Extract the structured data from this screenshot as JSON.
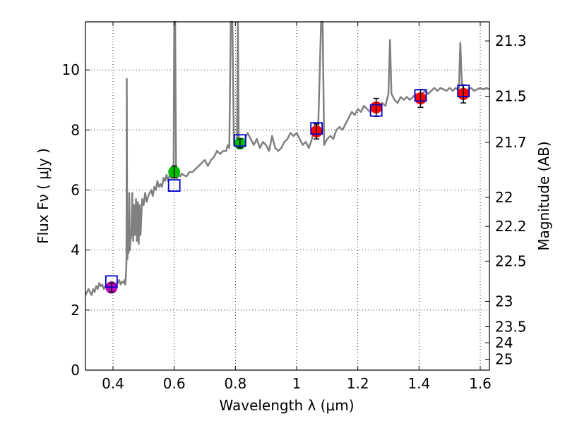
{
  "chart_data": {
    "type": "scatter",
    "xlabel": "Wavelength  λ (μm)",
    "ylabel": "Flux  Fν  ( μJy )",
    "ylabel_right": "Magnitude (AB)",
    "xlim": [
      0.31,
      1.63
    ],
    "ylim": [
      0,
      11.6
    ],
    "x_ticks": [
      0.4,
      0.6,
      0.8,
      1.0,
      1.2,
      1.4,
      1.6
    ],
    "x_tick_labels": [
      "0.4",
      "0.6",
      "0.8",
      "1",
      "1.2",
      "1.4",
      "1.6"
    ],
    "y_ticks": [
      0,
      2,
      4,
      6,
      8,
      10
    ],
    "y_tick_labels": [
      "0",
      "2",
      "4",
      "6",
      "8",
      "10"
    ],
    "right_ticks": [
      21.3,
      21.5,
      21.7,
      22,
      22.2,
      22.5,
      23,
      23.5,
      24,
      25
    ],
    "right_tick_labels": [
      "21.3",
      "21.5",
      "21.7",
      "22",
      "22.2",
      "22.5",
      "23",
      "23.5",
      "24",
      "25"
    ],
    "grid": "dotted",
    "colors": {
      "spectrum": "#808080",
      "model": "#0000cc",
      "magenta": "#bf00bf",
      "green": "#00bf00",
      "red": "#ff0000",
      "errorbar": "#000000"
    },
    "spectrum": [
      [
        0.31,
        2.5
      ],
      [
        0.315,
        2.6
      ],
      [
        0.32,
        2.7
      ],
      [
        0.325,
        2.6
      ],
      [
        0.33,
        2.5
      ],
      [
        0.335,
        2.7
      ],
      [
        0.34,
        2.6
      ],
      [
        0.345,
        2.8
      ],
      [
        0.35,
        2.7
      ],
      [
        0.355,
        2.9
      ],
      [
        0.36,
        2.8
      ],
      [
        0.365,
        2.85
      ],
      [
        0.37,
        2.7
      ],
      [
        0.375,
        2.8
      ],
      [
        0.38,
        2.75
      ],
      [
        0.385,
        2.9
      ],
      [
        0.39,
        2.8
      ],
      [
        0.395,
        2.95
      ],
      [
        0.4,
        2.8
      ],
      [
        0.405,
        2.9
      ],
      [
        0.41,
        2.85
      ],
      [
        0.415,
        2.9
      ],
      [
        0.42,
        3.0
      ],
      [
        0.425,
        2.85
      ],
      [
        0.43,
        2.95
      ],
      [
        0.435,
        2.9
      ],
      [
        0.438,
        3.0
      ],
      [
        0.44,
        2.85
      ],
      [
        0.442,
        3.1
      ],
      [
        0.444,
        3.6
      ],
      [
        0.445,
        9.7
      ],
      [
        0.446,
        6.0
      ],
      [
        0.447,
        3.7
      ],
      [
        0.449,
        4.3
      ],
      [
        0.451,
        3.9
      ],
      [
        0.453,
        5.9
      ],
      [
        0.455,
        4.0
      ],
      [
        0.457,
        4.3
      ],
      [
        0.46,
        4.5
      ],
      [
        0.463,
        5.9
      ],
      [
        0.466,
        4.3
      ],
      [
        0.469,
        5.5
      ],
      [
        0.472,
        4.5
      ],
      [
        0.475,
        5.7
      ],
      [
        0.478,
        4.3
      ],
      [
        0.481,
        5.6
      ],
      [
        0.484,
        4.2
      ],
      [
        0.487,
        5.5
      ],
      [
        0.49,
        4.5
      ],
      [
        0.495,
        5.7
      ],
      [
        0.5,
        5.5
      ],
      [
        0.505,
        5.9
      ],
      [
        0.51,
        5.6
      ],
      [
        0.515,
        5.8
      ],
      [
        0.52,
        5.9
      ],
      [
        0.525,
        6.0
      ],
      [
        0.53,
        5.8
      ],
      [
        0.535,
        6.1
      ],
      [
        0.54,
        6.0
      ],
      [
        0.545,
        6.3
      ],
      [
        0.55,
        6.1
      ],
      [
        0.555,
        6.2
      ],
      [
        0.56,
        6.1
      ],
      [
        0.565,
        6.4
      ],
      [
        0.57,
        6.3
      ],
      [
        0.575,
        6.5
      ],
      [
        0.58,
        6.3
      ],
      [
        0.585,
        6.5
      ],
      [
        0.59,
        6.4
      ],
      [
        0.595,
        6.6
      ],
      [
        0.598,
        6.5
      ],
      [
        0.6,
        11.6
      ],
      [
        0.603,
        11.6
      ],
      [
        0.606,
        6.5
      ],
      [
        0.61,
        6.4
      ],
      [
        0.615,
        6.5
      ],
      [
        0.62,
        6.45
      ],
      [
        0.625,
        6.55
      ],
      [
        0.63,
        6.5
      ],
      [
        0.64,
        6.45
      ],
      [
        0.65,
        6.6
      ],
      [
        0.66,
        6.6
      ],
      [
        0.67,
        6.7
      ],
      [
        0.68,
        6.8
      ],
      [
        0.69,
        6.9
      ],
      [
        0.7,
        7.0
      ],
      [
        0.71,
        6.8
      ],
      [
        0.72,
        7.0
      ],
      [
        0.73,
        7.1
      ],
      [
        0.74,
        7.3
      ],
      [
        0.75,
        7.2
      ],
      [
        0.76,
        7.3
      ],
      [
        0.77,
        7.3
      ],
      [
        0.775,
        7.5
      ],
      [
        0.78,
        7.4
      ],
      [
        0.785,
        11.6
      ],
      [
        0.79,
        11.6
      ],
      [
        0.795,
        7.5
      ],
      [
        0.8,
        7.6
      ],
      [
        0.805,
        7.5
      ],
      [
        0.808,
        11.6
      ],
      [
        0.811,
        7.5
      ],
      [
        0.815,
        7.6
      ],
      [
        0.82,
        7.4
      ],
      [
        0.83,
        7.7
      ],
      [
        0.84,
        7.9
      ],
      [
        0.85,
        7.7
      ],
      [
        0.86,
        7.5
      ],
      [
        0.87,
        7.7
      ],
      [
        0.88,
        7.4
      ],
      [
        0.89,
        7.6
      ],
      [
        0.9,
        7.5
      ],
      [
        0.91,
        7.3
      ],
      [
        0.92,
        7.8
      ],
      [
        0.93,
        7.4
      ],
      [
        0.94,
        7.3
      ],
      [
        0.95,
        7.4
      ],
      [
        0.96,
        7.6
      ],
      [
        0.97,
        7.7
      ],
      [
        0.98,
        7.9
      ],
      [
        0.99,
        7.8
      ],
      [
        1.0,
        7.9
      ],
      [
        1.01,
        7.7
      ],
      [
        1.02,
        7.5
      ],
      [
        1.03,
        7.6
      ],
      [
        1.04,
        7.4
      ],
      [
        1.05,
        7.7
      ],
      [
        1.06,
        8.2
      ],
      [
        1.07,
        7.9
      ],
      [
        1.08,
        11.6
      ],
      [
        1.085,
        11.6
      ],
      [
        1.09,
        7.5
      ],
      [
        1.1,
        7.7
      ],
      [
        1.11,
        7.8
      ],
      [
        1.12,
        7.7
      ],
      [
        1.13,
        8.0
      ],
      [
        1.14,
        8.1
      ],
      [
        1.15,
        8.0
      ],
      [
        1.16,
        8.2
      ],
      [
        1.17,
        8.4
      ],
      [
        1.18,
        8.6
      ],
      [
        1.19,
        8.5
      ],
      [
        1.2,
        8.7
      ],
      [
        1.21,
        8.6
      ],
      [
        1.22,
        8.8
      ],
      [
        1.23,
        8.7
      ],
      [
        1.24,
        8.6
      ],
      [
        1.25,
        8.8
      ],
      [
        1.26,
        8.7
      ],
      [
        1.27,
        8.85
      ],
      [
        1.28,
        8.9
      ],
      [
        1.29,
        8.8
      ],
      [
        1.3,
        9.2
      ],
      [
        1.305,
        11.0
      ],
      [
        1.31,
        9.2
      ],
      [
        1.32,
        9.0
      ],
      [
        1.33,
        8.9
      ],
      [
        1.34,
        9.1
      ],
      [
        1.35,
        9.0
      ],
      [
        1.36,
        9.1
      ],
      [
        1.37,
        9.0
      ],
      [
        1.38,
        9.1
      ],
      [
        1.39,
        9.2
      ],
      [
        1.4,
        9.1
      ],
      [
        1.41,
        9.2
      ],
      [
        1.42,
        9.3
      ],
      [
        1.43,
        9.2
      ],
      [
        1.44,
        9.3
      ],
      [
        1.45,
        9.4
      ],
      [
        1.46,
        9.3
      ],
      [
        1.47,
        9.4
      ],
      [
        1.48,
        9.35
      ],
      [
        1.49,
        9.3
      ],
      [
        1.5,
        9.4
      ],
      [
        1.51,
        9.3
      ],
      [
        1.52,
        9.4
      ],
      [
        1.53,
        9.3
      ],
      [
        1.535,
        10.9
      ],
      [
        1.54,
        9.5
      ],
      [
        1.55,
        9.3
      ],
      [
        1.56,
        9.35
      ],
      [
        1.57,
        9.4
      ],
      [
        1.58,
        9.3
      ],
      [
        1.59,
        9.35
      ],
      [
        1.6,
        9.4
      ],
      [
        1.61,
        9.35
      ],
      [
        1.62,
        9.4
      ],
      [
        1.63,
        9.35
      ]
    ],
    "model_points": [
      {
        "x": 0.395,
        "y": 2.95
      },
      {
        "x": 0.6,
        "y": 6.15
      },
      {
        "x": 0.815,
        "y": 7.65
      },
      {
        "x": 1.065,
        "y": 8.05
      },
      {
        "x": 1.26,
        "y": 8.65
      },
      {
        "x": 1.405,
        "y": 9.15
      },
      {
        "x": 1.545,
        "y": 9.3
      }
    ],
    "observed_points": [
      {
        "x": 0.395,
        "y": 2.75,
        "err": 0.15,
        "color": "magenta"
      },
      {
        "x": 0.6,
        "y": 6.6,
        "err": 0.2,
        "color": "green"
      },
      {
        "x": 0.815,
        "y": 7.55,
        "err": 0.15,
        "color": "green"
      },
      {
        "x": 1.065,
        "y": 7.95,
        "err": 0.25,
        "color": "red"
      },
      {
        "x": 1.26,
        "y": 8.75,
        "err": 0.3,
        "color": "red"
      },
      {
        "x": 1.405,
        "y": 9.05,
        "err": 0.3,
        "color": "red"
      },
      {
        "x": 1.545,
        "y": 9.2,
        "err": 0.3,
        "color": "red"
      }
    ]
  }
}
